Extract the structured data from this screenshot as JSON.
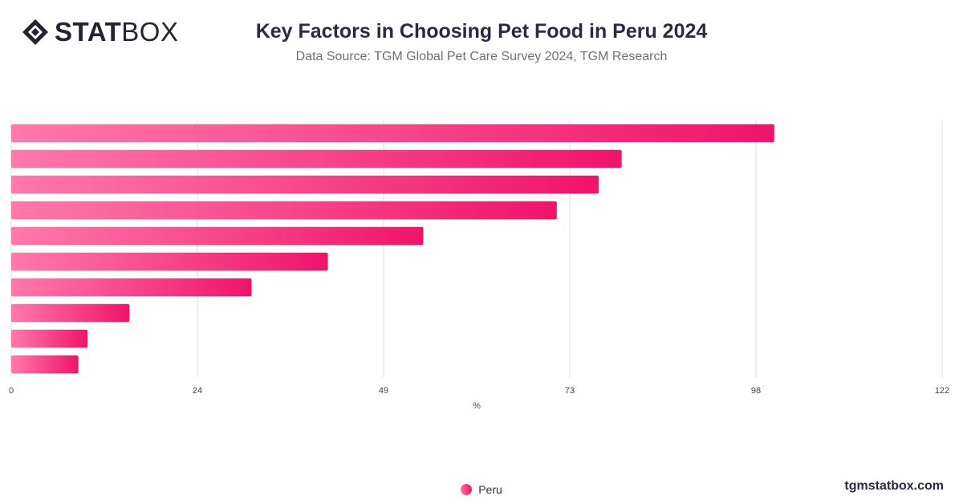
{
  "brand": {
    "name_bold": "STAT",
    "name_light": "BOX",
    "icon": "statbox-diamond-icon"
  },
  "header": {
    "title": "Key Factors in Choosing Pet Food in Peru 2024",
    "subtitle": "Data Source: TGM Global Pet Care Survey 2024, TGM Research"
  },
  "footer": {
    "site": "tgmstatbox.com"
  },
  "chart_data": {
    "type": "bar",
    "orientation": "horizontal",
    "categories": [
      "",
      "",
      "",
      "",
      "",
      "",
      "",
      "",
      "",
      ""
    ],
    "series": [
      {
        "name": "Peru",
        "values": [
          100,
          80,
          77,
          71.5,
          54,
          41.5,
          31.5,
          15.5,
          10,
          8.8
        ]
      }
    ],
    "xlabel": "%",
    "xlim": [
      0,
      122
    ],
    "xticks": [
      "0",
      "24",
      "49",
      "73",
      "98",
      "122"
    ],
    "xtick_values": [
      0,
      24.4,
      48.8,
      73.2,
      97.6,
      122
    ],
    "grid": true,
    "legend_position": "bottom",
    "colors": {
      "bar_start": "#ff79ab",
      "bar_end": "#f0146a",
      "grid": "#dddddd"
    }
  }
}
